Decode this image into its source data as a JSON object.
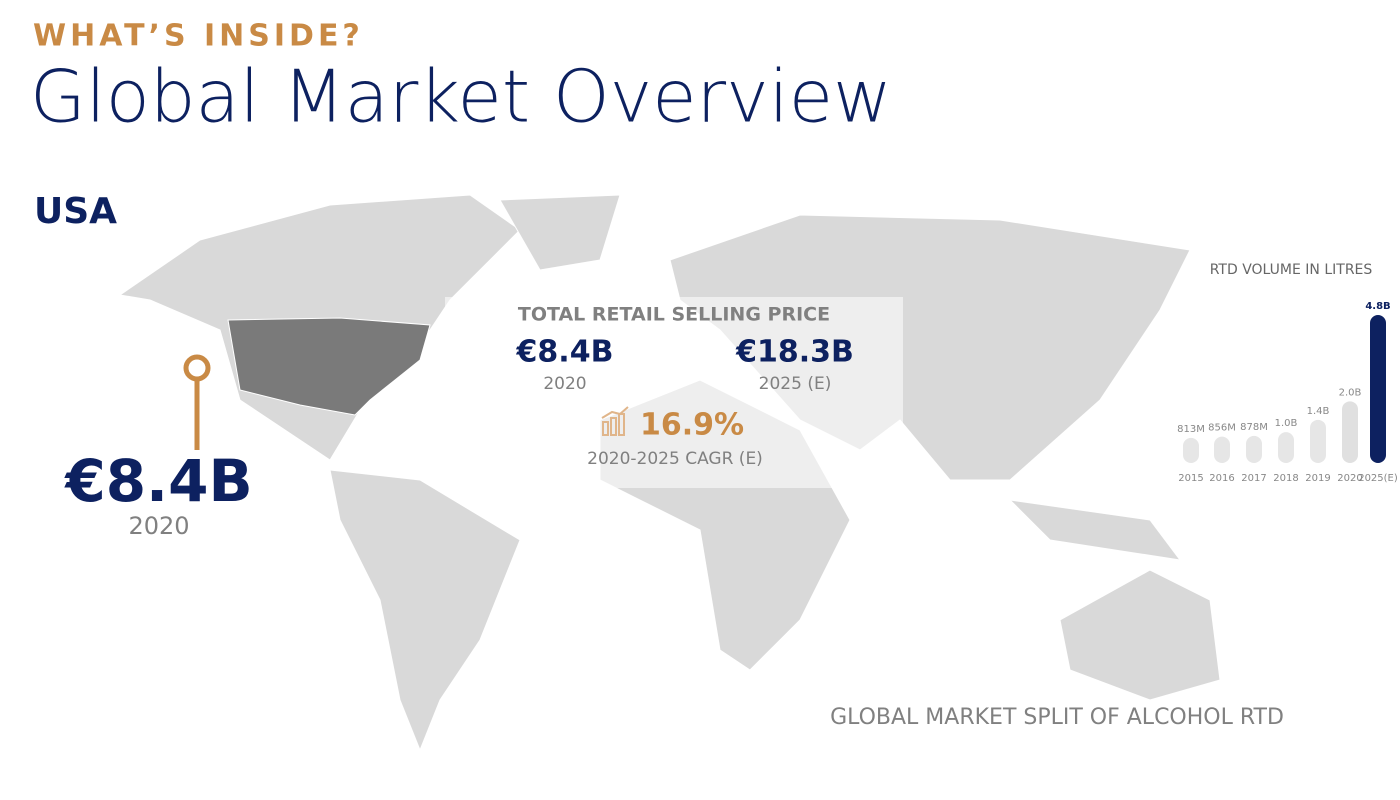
{
  "header": {
    "kicker": "WHAT’S INSIDE?",
    "title": "Global Market Overview"
  },
  "region": {
    "name": "USA",
    "value": "€8.4B",
    "year": "2020"
  },
  "retail_price": {
    "title": "TOTAL RETAIL SELLING PRICE",
    "items": [
      {
        "value": "€8.4B",
        "label": "2020"
      },
      {
        "value": "€18.3B",
        "label": "2025 (E)"
      }
    ],
    "cagr": {
      "value": "16.9%",
      "label": "2020-2025 CAGR (E)"
    }
  },
  "footer": "GLOBAL MARKET SPLIT OF ALCOHOL RTD",
  "chart_data": {
    "type": "bar",
    "title": "RTD VOLUME IN LITRES",
    "categories": [
      "2015",
      "2016",
      "2017",
      "2018",
      "2019",
      "2020",
      "2025(E)"
    ],
    "values": [
      813000000,
      856000000,
      878000000,
      1000000000,
      1400000000,
      2000000000,
      4800000000
    ],
    "value_labels": [
      "813M",
      "856M",
      "878M",
      "1.0B",
      "1.4B",
      "2.0B",
      "4.8B"
    ],
    "colors": [
      "#e6e6e6",
      "#e6e6e6",
      "#e6e6e6",
      "#e6e6e6",
      "#e6e6e6",
      "#e0e0e0",
      "#0d2160"
    ]
  }
}
